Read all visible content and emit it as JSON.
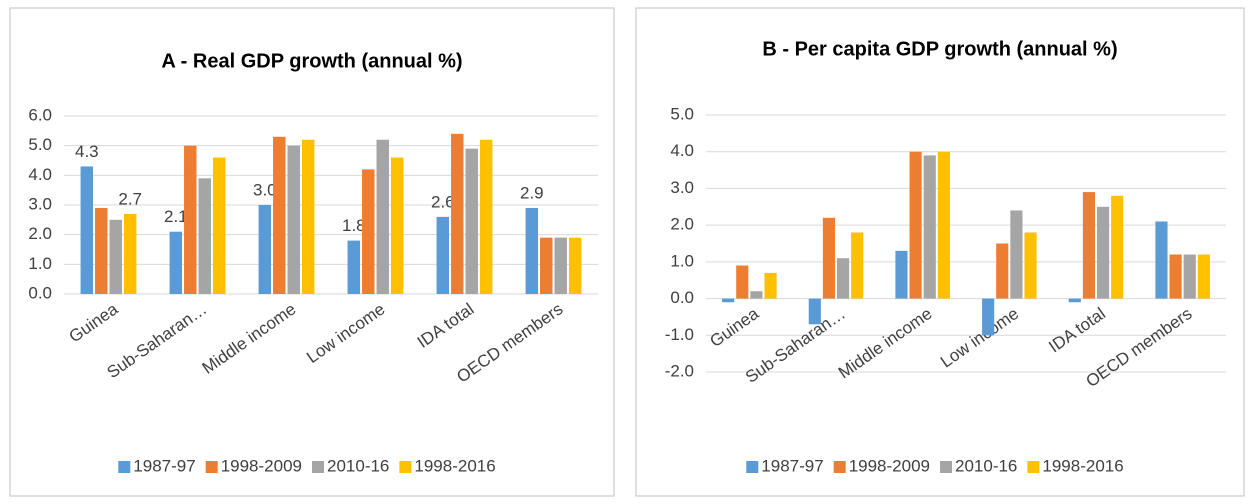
{
  "chart_data": [
    {
      "type": "bar",
      "title": "A - Real GDP growth (annual %)",
      "categories": [
        "Guinea",
        "Sub-Saharan…",
        "Middle income",
        "Low income",
        "IDA total",
        "OECD members"
      ],
      "series": [
        {
          "name": "1987-97",
          "color": "#5b9bd5",
          "values": [
            4.3,
            2.1,
            3.0,
            1.8,
            2.6,
            2.9
          ],
          "value_labels": [
            "4.3",
            "2.1",
            "3.0",
            "1.8",
            "2.6",
            "2.9"
          ]
        },
        {
          "name": "1998-2009",
          "color": "#ed7d31",
          "values": [
            2.9,
            5.0,
            5.3,
            4.2,
            5.4,
            1.9
          ]
        },
        {
          "name": "2010-16",
          "color": "#a5a5a5",
          "values": [
            2.5,
            3.9,
            5.0,
            5.2,
            4.9,
            1.9
          ]
        },
        {
          "name": "1998-2016",
          "color": "#ffc000",
          "values": [
            2.7,
            4.6,
            5.2,
            4.6,
            5.2,
            1.9
          ],
          "value_labels": [
            "2.7",
            null,
            null,
            null,
            null,
            null
          ]
        }
      ],
      "ylim": [
        0,
        6
      ],
      "yticks": [
        {
          "value": 0,
          "label": "0.0"
        },
        {
          "value": 1,
          "label": "1.0"
        },
        {
          "value": 2,
          "label": "2.0"
        },
        {
          "value": 3,
          "label": "3.0"
        },
        {
          "value": 4,
          "label": "4.0"
        },
        {
          "value": 5,
          "label": "5.0"
        },
        {
          "value": 6,
          "label": "6.0"
        }
      ],
      "grid": true,
      "legend": "bottom"
    },
    {
      "type": "bar",
      "title": "B - Per capita GDP growth (annual %)",
      "categories": [
        "Guinea",
        "Sub-Saharan…",
        "Middle income",
        "Low income",
        "IDA total",
        "OECD members"
      ],
      "series": [
        {
          "name": "1987-97",
          "color": "#5b9bd5",
          "values": [
            -0.1,
            -0.7,
            1.3,
            -1.0,
            -0.1,
            2.1
          ]
        },
        {
          "name": "1998-2009",
          "color": "#ed7d31",
          "values": [
            0.9,
            2.2,
            4.0,
            1.5,
            2.9,
            1.2
          ]
        },
        {
          "name": "2010-16",
          "color": "#a5a5a5",
          "values": [
            0.2,
            1.1,
            3.9,
            2.4,
            2.5,
            1.2
          ]
        },
        {
          "name": "1998-2016",
          "color": "#ffc000",
          "values": [
            0.7,
            1.8,
            4.0,
            1.8,
            2.8,
            1.2
          ]
        }
      ],
      "ylim": [
        -2,
        5
      ],
      "yticks": [
        {
          "value": -2,
          "label": "-2.0"
        },
        {
          "value": -1,
          "label": "-1.0"
        },
        {
          "value": 0,
          "label": "0.0"
        },
        {
          "value": 1,
          "label": "1.0"
        },
        {
          "value": 2,
          "label": "2.0"
        },
        {
          "value": 3,
          "label": "3.0"
        },
        {
          "value": 4,
          "label": "4.0"
        },
        {
          "value": 5,
          "label": "5.0"
        }
      ],
      "grid": true,
      "legend": "bottom"
    }
  ]
}
